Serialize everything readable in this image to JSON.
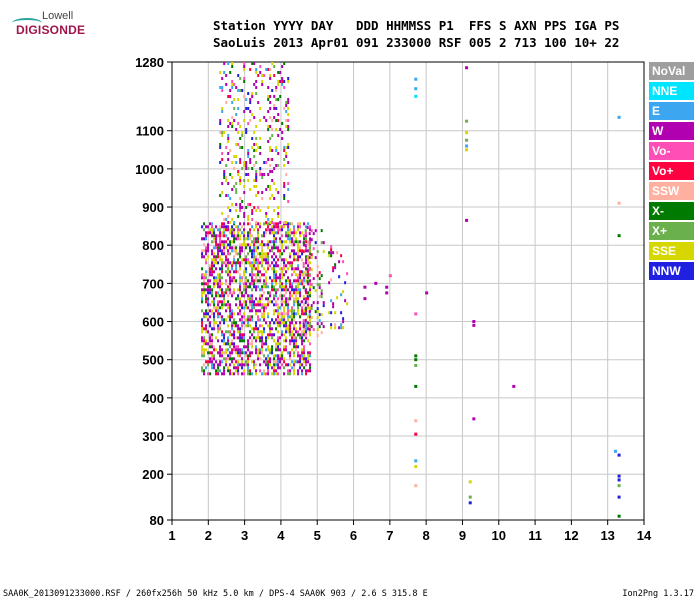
{
  "logo": {
    "line1": "Lowell",
    "line2": "DIGISONDE"
  },
  "header": {
    "labels": "Station YYYY DAY   DDD HHMMSS P1  FFS S AXN PPS IGA PS",
    "values": "SaoLuis 2013 Apr01 091 233000 RSF 005 2 713 100 10+ 22"
  },
  "legend": [
    {
      "label": "NoVal",
      "color": "#9e9e9e"
    },
    {
      "label": "NNE",
      "color": "#00e5ff"
    },
    {
      "label": "E",
      "color": "#3ca6f0"
    },
    {
      "label": "W",
      "color": "#b000b0"
    },
    {
      "label": "Vo-",
      "color": "#ff4fb6"
    },
    {
      "label": "Vo+",
      "color": "#ff0040"
    },
    {
      "label": "SSW",
      "color": "#ffb0a0"
    },
    {
      "label": "X-",
      "color": "#007a00"
    },
    {
      "label": "X+",
      "color": "#6ab04c"
    },
    {
      "label": "SSE",
      "color": "#d6d600"
    },
    {
      "label": "NNW",
      "color": "#2020e0"
    }
  ],
  "footer": {
    "left": "SAA0K_2013091233000.RSF / 260fx256h 50 kHz 5.0 km / DPS-4 SAA0K 903 / 2.6 S 315.8 E",
    "right": "Ion2Png 1.3.17"
  },
  "chart_data": {
    "type": "scatter",
    "xlim": [
      1,
      14
    ],
    "ylim": [
      80,
      1280
    ],
    "x_ticks": [
      "1",
      "2",
      "3",
      "4",
      "5",
      "6",
      "7",
      "8",
      "9",
      "10",
      "11",
      "12",
      "13",
      "14"
    ],
    "y_ticks": [
      {
        "value": 80,
        "label": "80"
      },
      {
        "value": 200,
        "label": "200"
      },
      {
        "value": 300,
        "label": "300"
      },
      {
        "value": 400,
        "label": "400"
      },
      {
        "value": 500,
        "label": "500"
      },
      {
        "value": 600,
        "label": "600"
      },
      {
        "value": 700,
        "label": "700"
      },
      {
        "value": 800,
        "label": "800"
      },
      {
        "value": 900,
        "label": "900"
      },
      {
        "value": 1000,
        "label": "1000"
      },
      {
        "value": 1100,
        "label": "1100"
      },
      {
        "value": 1280,
        "label": "1280"
      }
    ],
    "grid": true,
    "clusters": [
      {
        "x": [
          1.8,
          4.8
        ],
        "y": [
          460,
          860
        ],
        "density": 0.55
      },
      {
        "x": [
          2.3,
          4.2
        ],
        "y": [
          860,
          1280
        ],
        "density": 0.18
      },
      {
        "x": [
          4.6,
          5.2
        ],
        "y": [
          560,
          850
        ],
        "density": 0.22
      },
      {
        "x": [
          5.3,
          5.8
        ],
        "y": [
          580,
          800
        ],
        "density": 0.18
      }
    ],
    "points": [
      {
        "x": 6.3,
        "y": 690,
        "c": "W"
      },
      {
        "x": 6.3,
        "y": 660,
        "c": "W"
      },
      {
        "x": 6.6,
        "y": 700,
        "c": "W"
      },
      {
        "x": 6.9,
        "y": 690,
        "c": "W"
      },
      {
        "x": 6.9,
        "y": 675,
        "c": "W"
      },
      {
        "x": 7.0,
        "y": 720,
        "c": "Vo-"
      },
      {
        "x": 7.7,
        "y": 1235,
        "c": "E"
      },
      {
        "x": 7.7,
        "y": 1210,
        "c": "E"
      },
      {
        "x": 7.7,
        "y": 1190,
        "c": "NNE"
      },
      {
        "x": 8.0,
        "y": 675,
        "c": "W"
      },
      {
        "x": 7.7,
        "y": 620,
        "c": "Vo-"
      },
      {
        "x": 7.7,
        "y": 510,
        "c": "X-"
      },
      {
        "x": 7.7,
        "y": 500,
        "c": "X-"
      },
      {
        "x": 7.7,
        "y": 485,
        "c": "X+"
      },
      {
        "x": 7.7,
        "y": 430,
        "c": "X-"
      },
      {
        "x": 7.7,
        "y": 340,
        "c": "SSW"
      },
      {
        "x": 7.7,
        "y": 305,
        "c": "Vo+"
      },
      {
        "x": 7.7,
        "y": 235,
        "c": "E"
      },
      {
        "x": 7.7,
        "y": 220,
        "c": "SSE"
      },
      {
        "x": 7.7,
        "y": 170,
        "c": "SSW"
      },
      {
        "x": 9.1,
        "y": 1265,
        "c": "W"
      },
      {
        "x": 9.1,
        "y": 1125,
        "c": "X+"
      },
      {
        "x": 9.1,
        "y": 1095,
        "c": "SSE"
      },
      {
        "x": 9.1,
        "y": 1075,
        "c": "X+"
      },
      {
        "x": 9.1,
        "y": 1060,
        "c": "E"
      },
      {
        "x": 9.1,
        "y": 1050,
        "c": "SSE"
      },
      {
        "x": 9.1,
        "y": 865,
        "c": "W"
      },
      {
        "x": 9.3,
        "y": 600,
        "c": "W"
      },
      {
        "x": 9.3,
        "y": 590,
        "c": "W"
      },
      {
        "x": 9.3,
        "y": 345,
        "c": "W"
      },
      {
        "x": 9.2,
        "y": 180,
        "c": "SSE"
      },
      {
        "x": 9.2,
        "y": 140,
        "c": "X+"
      },
      {
        "x": 9.2,
        "y": 125,
        "c": "NNW"
      },
      {
        "x": 10.4,
        "y": 430,
        "c": "W"
      },
      {
        "x": 13.3,
        "y": 1135,
        "c": "E"
      },
      {
        "x": 13.3,
        "y": 910,
        "c": "SSW"
      },
      {
        "x": 13.3,
        "y": 825,
        "c": "X-"
      },
      {
        "x": 13.3,
        "y": 250,
        "c": "NNW"
      },
      {
        "x": 13.2,
        "y": 260,
        "c": "E"
      },
      {
        "x": 13.3,
        "y": 195,
        "c": "NNW"
      },
      {
        "x": 13.3,
        "y": 185,
        "c": "NNW"
      },
      {
        "x": 13.3,
        "y": 170,
        "c": "X+"
      },
      {
        "x": 13.3,
        "y": 140,
        "c": "NNW"
      },
      {
        "x": 13.3,
        "y": 90,
        "c": "X-"
      }
    ]
  }
}
